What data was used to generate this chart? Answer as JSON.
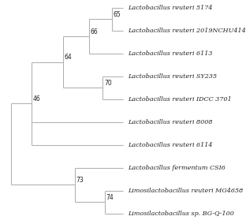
{
  "taxa": [
    "Lactobacillus reuteri 5174",
    "Lactobacillus reuteri 2019NCHU414",
    "Lactobacillus reuteri 6113",
    "Lactobacillus reuteri SY235",
    "Lactobacillus reuteri IDCC 3701",
    "Lactobacillus reuteri 8008",
    "Lactobacillus reuteri 6114",
    "Lactobacillus fermentum CSI6",
    "Limosilactobacillus reuteri MG4658",
    "Limosilactobacillus sp. BG-Q-100"
  ],
  "line_color": "#b0b0b0",
  "text_color": "#222222",
  "background_color": "#ffffff",
  "font_size": 5.8,
  "bootstrap_font_size": 5.5
}
